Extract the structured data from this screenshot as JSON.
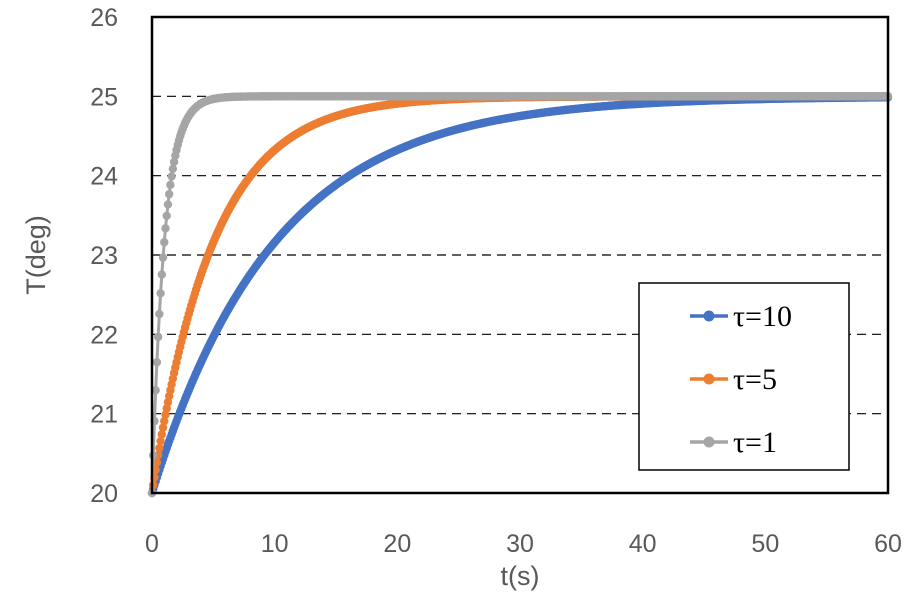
{
  "chart_data": {
    "type": "scatter",
    "xlabel": "t(s)",
    "ylabel": "T(deg)",
    "xlim": [
      0,
      60
    ],
    "ylim": [
      20,
      26
    ],
    "xticks": [
      0,
      10,
      20,
      30,
      40,
      50,
      60
    ],
    "yticks": [
      20,
      21,
      22,
      23,
      24,
      25,
      26
    ],
    "grid": "horizontal dashed",
    "legend_position": "bottom-right",
    "T0": 20,
    "Tinf": 25,
    "series": [
      {
        "name": "τ=10",
        "tau": 10,
        "color": "#4472C4"
      },
      {
        "name": "τ=5",
        "tau": 5,
        "color": "#ED7D31"
      },
      {
        "name": "τ=1",
        "tau": 1,
        "color": "#A5A5A5"
      }
    ]
  }
}
